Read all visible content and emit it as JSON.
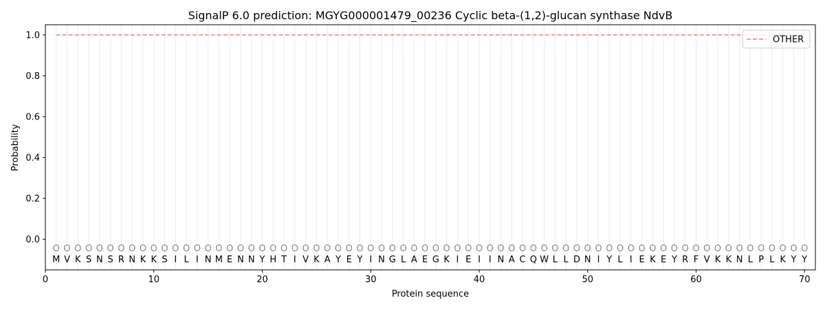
{
  "chart_data": {
    "type": "line",
    "title": "SignalP 6.0 prediction: MGYG000001479_00236 Cyclic beta-(1,2)-glucan synthase NdvB",
    "xlabel": "Protein sequence",
    "ylabel": "Probability",
    "xlim": [
      0,
      71
    ],
    "ylim": [
      -0.15,
      1.05
    ],
    "x_ticks": [
      0,
      10,
      20,
      30,
      40,
      50,
      60,
      70
    ],
    "y_ticks": [
      0.0,
      0.2,
      0.4,
      0.6,
      0.8,
      1.0
    ],
    "y_tick_labels": [
      "0.0",
      "0.2",
      "0.4",
      "0.6",
      "0.8",
      "1.0"
    ],
    "grid": "vertical lines at each residue",
    "legend_position": "top-right",
    "sequence": [
      "M",
      "V",
      "K",
      "S",
      "N",
      "S",
      "R",
      "N",
      "K",
      "K",
      "S",
      "I",
      "L",
      "I",
      "N",
      "M",
      "E",
      "N",
      "N",
      "Y",
      "H",
      "T",
      "I",
      "V",
      "K",
      "A",
      "Y",
      "E",
      "Y",
      "I",
      "N",
      "G",
      "L",
      "A",
      "E",
      "G",
      "K",
      "I",
      "E",
      "I",
      "I",
      "N",
      "A",
      "C",
      "Q",
      "W",
      "L",
      "L",
      "D",
      "N",
      "I",
      "Y",
      "L",
      "I",
      "E",
      "K",
      "E",
      "Y",
      "R",
      "F",
      "V",
      "K",
      "K",
      "N",
      "L",
      "P",
      "L",
      "K",
      "Y",
      "Y"
    ],
    "predicted_labels": [
      "O",
      "O",
      "O",
      "O",
      "O",
      "O",
      "O",
      "O",
      "O",
      "O",
      "O",
      "O",
      "O",
      "O",
      "O",
      "O",
      "O",
      "O",
      "O",
      "O",
      "O",
      "O",
      "O",
      "O",
      "O",
      "O",
      "O",
      "O",
      "O",
      "O",
      "O",
      "O",
      "O",
      "O",
      "O",
      "O",
      "O",
      "O",
      "O",
      "O",
      "O",
      "O",
      "O",
      "O",
      "O",
      "O",
      "O",
      "O",
      "O",
      "O",
      "O",
      "O",
      "O",
      "O",
      "O",
      "O",
      "O",
      "O",
      "O",
      "O",
      "O",
      "O",
      "O",
      "O",
      "O",
      "O",
      "O",
      "O",
      "O",
      "O"
    ],
    "series": [
      {
        "name": "OTHER",
        "color": "#f08080",
        "style": "dashed",
        "x": [
          1,
          70
        ],
        "y": [
          1.0,
          1.0
        ]
      }
    ]
  }
}
